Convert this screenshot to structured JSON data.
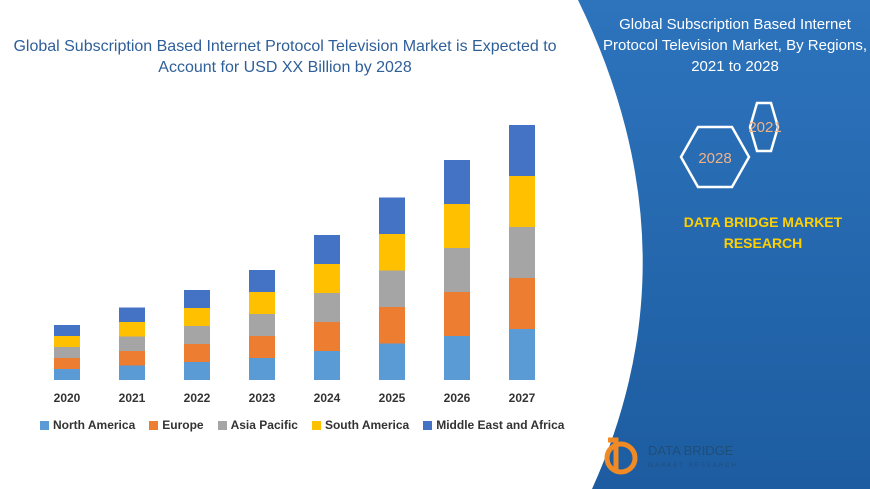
{
  "chart_data": {
    "type": "bar-stacked",
    "title": "Global Subscription Based Internet Protocol Television Market is Expected to Account for USD XX Billion by 2028",
    "categories": [
      "2020",
      "2021",
      "2022",
      "2023",
      "2024",
      "2025",
      "2026",
      "2027"
    ],
    "series": [
      {
        "name": "North America",
        "color": "#5b9bd5",
        "values": [
          11,
          14.5,
          18,
          22,
          29,
          36.5,
          44,
          51
        ]
      },
      {
        "name": "Europe",
        "color": "#ed7d31",
        "values": [
          11,
          14.5,
          18,
          22,
          29,
          36.5,
          44,
          51
        ]
      },
      {
        "name": "Asia Pacific",
        "color": "#a5a5a5",
        "values": [
          11,
          14.5,
          18,
          22,
          29,
          36.5,
          44,
          51
        ]
      },
      {
        "name": "South America",
        "color": "#ffc000",
        "values": [
          11,
          14.5,
          18,
          22,
          29,
          36.5,
          44,
          51
        ]
      },
      {
        "name": "Middle East and Africa",
        "color": "#4472c4",
        "values": [
          11,
          14.5,
          18,
          22,
          29,
          36.5,
          44,
          51
        ]
      }
    ]
  },
  "panel": {
    "title": "Global Subscription Based Internet Protocol Television Market, By Regions, 2021 to 2028",
    "hexagons": [
      "2021",
      "2028"
    ],
    "brand": "DATA BRIDGE MARKET RESEARCH",
    "logo": {
      "name": "DATA BRIDGE",
      "tagline": "MARKET RESEARCH"
    }
  }
}
